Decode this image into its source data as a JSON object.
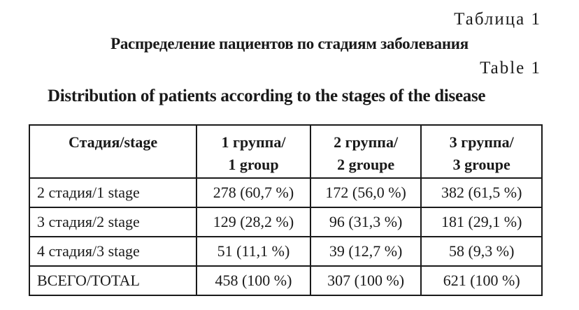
{
  "label_ru": "Таблица 1",
  "title_ru": "Распределение пациентов по стадиям заболевания",
  "label_en": "Table 1",
  "title_en": "Distribution of patients according to the stages of the disease",
  "table": {
    "headers": [
      {
        "line1": "Стадия/stage",
        "line2": ""
      },
      {
        "line1": "1 группа/",
        "line2": "1 group"
      },
      {
        "line1": "2 группа/",
        "line2": "2 groupe"
      },
      {
        "line1": "3 группа/",
        "line2": "3 groupe"
      }
    ],
    "rows": [
      {
        "stage": "2 стадия/1 stage",
        "g1": "278 (60,7 %)",
        "g2": "172 (56,0 %)",
        "g3": "382 (61,5 %)"
      },
      {
        "stage": "3 стадия/2 stage",
        "g1": "129 (28,2 %)",
        "g2": "96 (31,3 %)",
        "g3": "181 (29,1 %)"
      },
      {
        "stage": "4 стадия/3 stage",
        "g1": "51 (11,1 %)",
        "g2": "39 (12,7 %)",
        "g3": "58 (9,3 %)"
      },
      {
        "stage": "ВСЕГО/TOTAL",
        "g1": "458 (100 %)",
        "g2": "307 (100 %)",
        "g3": "621 (100 %)"
      }
    ]
  }
}
